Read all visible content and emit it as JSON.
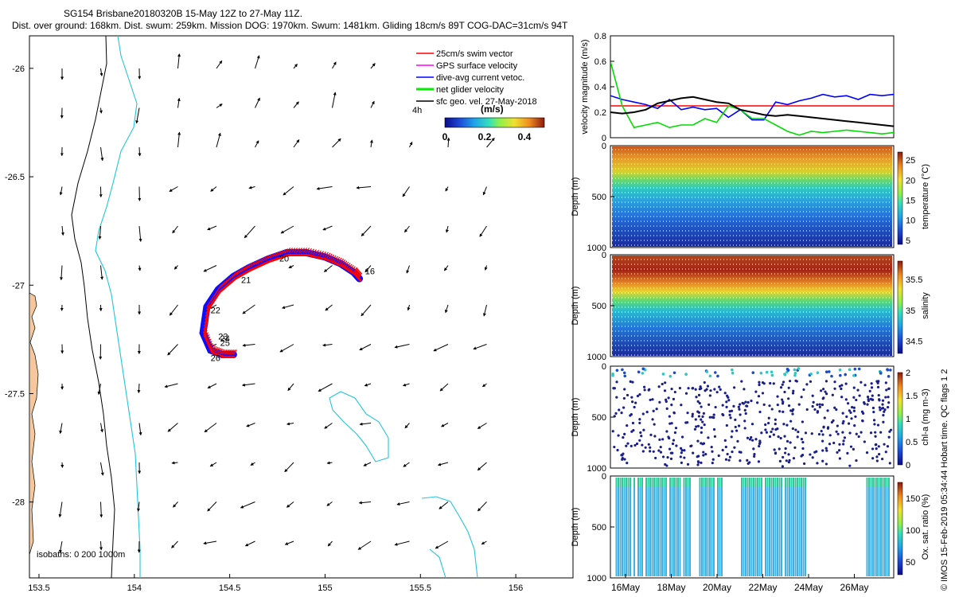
{
  "title": {
    "line1": "SG154 Brisbane20180320B 15-May 12Z to 27-May 11Z.",
    "line2": "Dist. over ground: 168km. Dist. swum: 259km. Mission DOG: 1970km. Swum: 1481km. Gliding 18cm/s 89T COG-DAC=31cm/s 94T"
  },
  "credit": "© IMOS 15-Feb-2019 05:34:44 Hobart time. QC flags 1  2",
  "colors": {
    "coast": "#f6c79d",
    "isobath_200": "#22c5dc",
    "isobath_1000": "#000000",
    "swim": "#ff0000",
    "gps": "#ff00ff",
    "dac": "#0000ff",
    "glider": "#00ee00",
    "sfc": "#000000"
  },
  "chart_data": [
    {
      "type": "scatter",
      "name": "glider track map",
      "xlim": [
        153.45,
        156.3
      ],
      "ylim": [
        -28.35,
        -25.85
      ],
      "xticks": [
        "153.5",
        "154",
        "154.5",
        "155",
        "155.5",
        "156"
      ],
      "yticks": [
        "-26",
        "-26.5",
        "-27",
        "-27.5",
        "-28"
      ],
      "legend": [
        "25cm/s swim vector",
        "GPS surface velocity",
        "dive-avg current vetoc.",
        "net glider velocity",
        "sfc geo. vel. 27-May-2018"
      ],
      "legend_location": "top-right",
      "colorbar": {
        "label": "(m/s)",
        "ticks": [
          "0",
          "0.2",
          "0.4"
        ],
        "range": [
          0,
          0.5
        ]
      },
      "isobaths_label": "isobaths: 0   200  1000m",
      "track": [
        [
          154.52,
          -27.32
        ],
        [
          154.46,
          -27.32
        ],
        [
          154.4,
          -27.3
        ],
        [
          154.36,
          -27.22
        ],
        [
          154.38,
          -27.1
        ],
        [
          154.44,
          -27.02
        ],
        [
          154.52,
          -26.96
        ],
        [
          154.6,
          -26.92
        ],
        [
          154.7,
          -26.88
        ],
        [
          154.8,
          -26.85
        ],
        [
          154.9,
          -26.85
        ],
        [
          155.0,
          -26.87
        ],
        [
          155.08,
          -26.9
        ],
        [
          155.15,
          -26.94
        ],
        [
          155.18,
          -26.97
        ]
      ],
      "day_labels": [
        {
          "text": "16",
          "lon": 155.21,
          "lat": -26.95
        },
        {
          "text": "20",
          "lon": 154.76,
          "lat": -26.89
        },
        {
          "text": "21",
          "lon": 154.56,
          "lat": -26.99
        },
        {
          "text": "22",
          "lon": 154.4,
          "lat": -27.13
        },
        {
          "text": "23",
          "lon": 154.44,
          "lat": -27.25
        },
        {
          "text": "24",
          "lon": 154.45,
          "lat": -27.26
        },
        {
          "text": "25",
          "lon": 154.45,
          "lat": -27.28
        },
        {
          "text": "26",
          "lon": 154.4,
          "lat": -27.35
        }
      ],
      "current_label": "4h"
    },
    {
      "type": "line",
      "name": "velocity magnitude",
      "ylabel": "velocity magnitude (m/s)",
      "ylim": [
        0,
        0.8
      ],
      "yticks": [
        "0",
        "0.2",
        "0.4",
        "0.6",
        "0.8"
      ],
      "xlim": [
        15.5,
        27.5
      ],
      "reference_line": 0.25,
      "series": [
        {
          "name": "dive-avg current",
          "color": "#0000ff",
          "x": [
            15.5,
            16,
            16.5,
            17,
            17.5,
            18,
            18.5,
            19,
            19.5,
            20,
            20.5,
            21,
            21.5,
            22,
            22.5,
            23,
            23.5,
            24,
            24.5,
            25,
            25.5,
            26,
            26.5,
            27,
            27.5
          ],
          "values": [
            0.33,
            0.3,
            0.28,
            0.26,
            0.23,
            0.3,
            0.22,
            0.24,
            0.22,
            0.23,
            0.16,
            0.22,
            0.14,
            0.14,
            0.28,
            0.26,
            0.29,
            0.31,
            0.34,
            0.32,
            0.33,
            0.3,
            0.34,
            0.33,
            0.34
          ]
        },
        {
          "name": "net glider velocity",
          "color": "#00dd00",
          "x": [
            15.5,
            16,
            16.5,
            17,
            17.5,
            18,
            18.5,
            19,
            19.5,
            20,
            20.5,
            21,
            21.5,
            22,
            22.5,
            23,
            23.5,
            24,
            24.5,
            25,
            25.5,
            26,
            26.5,
            27,
            27.5
          ],
          "values": [
            0.6,
            0.25,
            0.08,
            0.1,
            0.12,
            0.08,
            0.1,
            0.1,
            0.15,
            0.12,
            0.25,
            0.22,
            0.15,
            0.15,
            0.1,
            0.05,
            0.02,
            0.05,
            0.04,
            0.05,
            0.06,
            0.05,
            0.04,
            0.03,
            0.04
          ]
        },
        {
          "name": "mean",
          "color": "#000000",
          "x": [
            15.5,
            16,
            16.5,
            17,
            17.5,
            18,
            18.5,
            19,
            19.5,
            20,
            20.5,
            21,
            21.5,
            22,
            22.5,
            23,
            23.5,
            24,
            24.5,
            25,
            25.5,
            26,
            26.5,
            27,
            27.5
          ],
          "values": [
            0.2,
            0.19,
            0.2,
            0.22,
            0.27,
            0.29,
            0.31,
            0.32,
            0.3,
            0.28,
            0.27,
            0.22,
            0.2,
            0.18,
            0.17,
            0.18,
            0.17,
            0.16,
            0.15,
            0.14,
            0.13,
            0.12,
            0.11,
            0.1,
            0.09
          ]
        }
      ]
    },
    {
      "type": "heatmap",
      "name": "temperature",
      "ylabel": "Depth (m)",
      "colorbar_label": "temperature (°C)",
      "yticks": [
        "0",
        "500",
        "1000"
      ],
      "cbar_ticks": [
        "5",
        "10",
        "15",
        "20",
        "25"
      ],
      "cbar_range": [
        4,
        27
      ]
    },
    {
      "type": "heatmap",
      "name": "salinity",
      "ylabel": "Depth (m)",
      "colorbar_label": "salinity",
      "yticks": [
        "0",
        "500",
        "1000"
      ],
      "cbar_ticks": [
        "34.5",
        "35",
        "35.5"
      ],
      "cbar_range": [
        34.3,
        35.8
      ]
    },
    {
      "type": "scatter",
      "name": "chlorophyll",
      "ylabel": "Depth (m)",
      "colorbar_label": "chl-a (mg m-3)",
      "yticks": [
        "0",
        "500",
        "1000"
      ],
      "cbar_ticks": [
        "0",
        "0.5",
        "1",
        "1.5",
        "2"
      ],
      "cbar_range": [
        0,
        2
      ]
    },
    {
      "type": "scatter",
      "name": "oxygen",
      "ylabel": "Depth (m)",
      "colorbar_label": "Ox. sat. ratio (%)",
      "yticks": [
        "0",
        "500",
        "1000"
      ],
      "cbar_ticks": [
        "50",
        "100",
        "150"
      ],
      "cbar_range": [
        30,
        175
      ],
      "xticks": [
        "16May",
        "18May",
        "20May",
        "22May",
        "24May",
        "26May"
      ]
    }
  ]
}
